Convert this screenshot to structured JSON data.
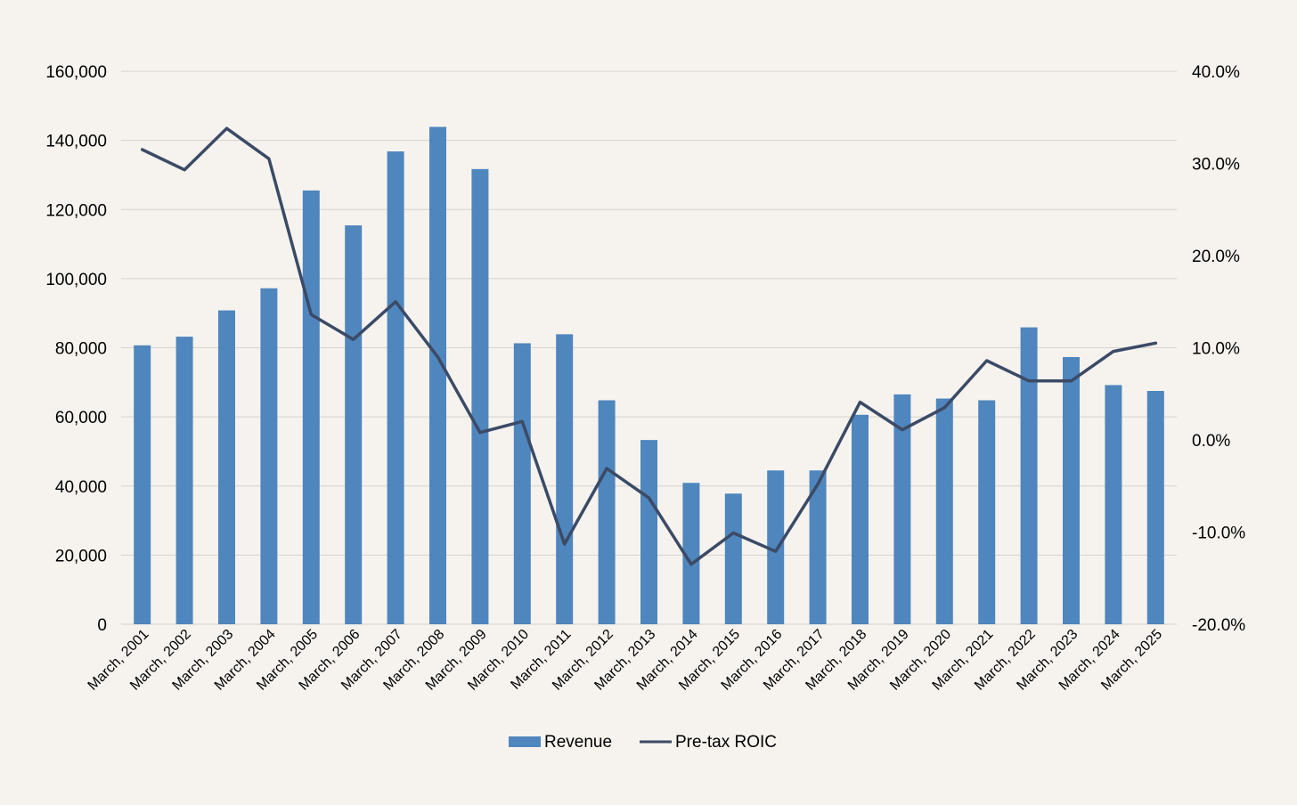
{
  "chart_data": {
    "type": "bar",
    "categories": [
      "March, 2001",
      "March, 2002",
      "March, 2003",
      "March, 2004",
      "March, 2005",
      "March, 2006",
      "March, 2007",
      "March, 2008",
      "March, 2009",
      "March, 2010",
      "March, 2011",
      "March, 2012",
      "March, 2013",
      "March, 2014",
      "March, 2015",
      "March, 2016",
      "March, 2017",
      "March, 2018",
      "March, 2019",
      "March, 2020",
      "March, 2021",
      "March, 2022",
      "March, 2023",
      "March, 2024",
      "March, 2025"
    ],
    "series": [
      {
        "name": "Revenue",
        "type": "bar",
        "axis": "left",
        "color": "#4f86bd",
        "values": [
          80700,
          83200,
          90800,
          97200,
          125500,
          115400,
          136800,
          143900,
          131700,
          81300,
          83900,
          64800,
          53300,
          40900,
          37800,
          44500,
          44500,
          60600,
          66500,
          65300,
          64800,
          85900,
          77300,
          69200,
          67500
        ]
      },
      {
        "name": "Pre-tax ROIC",
        "type": "line",
        "axis": "right",
        "color": "#3b4a66",
        "values": [
          31.5,
          29.3,
          33.8,
          30.5,
          13.6,
          10.9,
          15.0,
          9.0,
          0.8,
          2.0,
          -11.3,
          -3.1,
          -6.3,
          -13.5,
          -10.1,
          -12.1,
          -4.8,
          4.1,
          1.1,
          3.5,
          8.6,
          6.4,
          6.4,
          9.6,
          10.5
        ]
      }
    ],
    "y_left": {
      "min": 0,
      "max": 160000,
      "step": 20000,
      "ticks": [
        "0",
        "20,000",
        "40,000",
        "60,000",
        "80,000",
        "100,000",
        "120,000",
        "140,000",
        "160,000"
      ]
    },
    "y_right": {
      "min": -20,
      "max": 40,
      "step": 10,
      "ticks": [
        "-20.0%",
        "-10.0%",
        "0.0%",
        "10.0%",
        "20.0%",
        "30.0%",
        "40.0%"
      ]
    },
    "grid": true,
    "legend_position": "bottom-center",
    "title": "",
    "xlabel": "",
    "ylabel": ""
  },
  "legend": {
    "bar_label": "Revenue",
    "line_label": "Pre-tax ROIC"
  },
  "colors": {
    "background": "#f6f3ee",
    "gridline": "#d6d3ce",
    "bar": "#4f86bd",
    "line": "#3b4a66"
  }
}
